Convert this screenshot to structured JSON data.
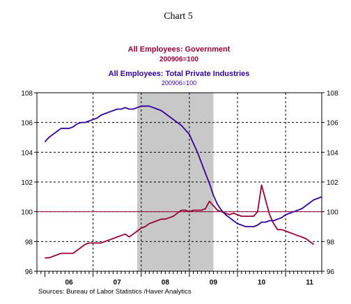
{
  "chart_data": {
    "type": "line",
    "title": "Chart 5",
    "series_titles": [
      {
        "name": "All Employees: Government",
        "sub": "200906=100",
        "color": "#990033"
      },
      {
        "name": "All Employees: Total Private Industries",
        "sub": "200906=100",
        "color": "#330099"
      }
    ],
    "source": "Sources:  Bureau of Labor Statistics /Haver Analytics",
    "x_range": [
      2005.833,
      2011.75
    ],
    "ylim": [
      96,
      108
    ],
    "y_ticks": [
      96,
      98,
      100,
      102,
      104,
      106,
      108
    ],
    "x_year_labels": [
      {
        "label": "06",
        "x": 2006.5
      },
      {
        "label": "07",
        "x": 2007.5
      },
      {
        "label": "08",
        "x": 2008.5
      },
      {
        "label": "09",
        "x": 2009.5
      },
      {
        "label": "10",
        "x": 2010.5
      },
      {
        "label": "11",
        "x": 2011.5
      }
    ],
    "year_gridlines": [
      2007,
      2008,
      2009,
      2010,
      2011
    ],
    "reference_line": {
      "y": 100,
      "color": "#990033"
    },
    "recession_shade": {
      "start": 2007.917,
      "end": 2009.5
    },
    "grid": true,
    "series": [
      {
        "name": "All Employees: Government",
        "color": "#990033",
        "points": [
          [
            2006.0,
            96.9
          ],
          [
            2006.083,
            96.9
          ],
          [
            2006.167,
            97.0
          ],
          [
            2006.25,
            97.1
          ],
          [
            2006.333,
            97.2
          ],
          [
            2006.417,
            97.2
          ],
          [
            2006.5,
            97.2
          ],
          [
            2006.583,
            97.2
          ],
          [
            2006.667,
            97.4
          ],
          [
            2006.75,
            97.6
          ],
          [
            2006.833,
            97.8
          ],
          [
            2006.917,
            97.9
          ],
          [
            2007.0,
            97.9
          ],
          [
            2007.083,
            97.9
          ],
          [
            2007.167,
            97.9
          ],
          [
            2007.25,
            98.0
          ],
          [
            2007.333,
            98.1
          ],
          [
            2007.417,
            98.2
          ],
          [
            2007.5,
            98.3
          ],
          [
            2007.583,
            98.4
          ],
          [
            2007.667,
            98.5
          ],
          [
            2007.75,
            98.3
          ],
          [
            2007.833,
            98.5
          ],
          [
            2007.917,
            98.7
          ],
          [
            2008.0,
            98.9
          ],
          [
            2008.083,
            99.0
          ],
          [
            2008.167,
            99.2
          ],
          [
            2008.25,
            99.3
          ],
          [
            2008.333,
            99.4
          ],
          [
            2008.417,
            99.5
          ],
          [
            2008.5,
            99.5
          ],
          [
            2008.583,
            99.6
          ],
          [
            2008.667,
            99.7
          ],
          [
            2008.75,
            99.9
          ],
          [
            2008.833,
            100.1
          ],
          [
            2008.917,
            100.1
          ],
          [
            2009.0,
            100.0
          ],
          [
            2009.083,
            100.1
          ],
          [
            2009.167,
            100.1
          ],
          [
            2009.25,
            100.1
          ],
          [
            2009.333,
            100.2
          ],
          [
            2009.417,
            100.7
          ],
          [
            2009.5,
            100.4
          ],
          [
            2009.583,
            100.1
          ],
          [
            2009.667,
            100.0
          ],
          [
            2009.75,
            99.9
          ],
          [
            2009.833,
            99.8
          ],
          [
            2009.917,
            99.9
          ],
          [
            2010.0,
            99.8
          ],
          [
            2010.083,
            99.7
          ],
          [
            2010.167,
            99.7
          ],
          [
            2010.25,
            99.7
          ],
          [
            2010.333,
            99.7
          ],
          [
            2010.417,
            100.0
          ],
          [
            2010.5,
            101.8
          ],
          [
            2010.583,
            100.8
          ],
          [
            2010.667,
            99.8
          ],
          [
            2010.75,
            99.2
          ],
          [
            2010.833,
            98.8
          ],
          [
            2010.917,
            98.8
          ],
          [
            2011.0,
            98.7
          ],
          [
            2011.083,
            98.6
          ],
          [
            2011.167,
            98.5
          ],
          [
            2011.25,
            98.4
          ],
          [
            2011.333,
            98.3
          ],
          [
            2011.417,
            98.2
          ],
          [
            2011.5,
            98.0
          ],
          [
            2011.583,
            97.8
          ]
        ]
      },
      {
        "name": "All Employees: Total Private Industries",
        "color": "#330099",
        "points": [
          [
            2006.0,
            104.7
          ],
          [
            2006.083,
            105.0
          ],
          [
            2006.167,
            105.2
          ],
          [
            2006.25,
            105.4
          ],
          [
            2006.333,
            105.6
          ],
          [
            2006.417,
            105.6
          ],
          [
            2006.5,
            105.6
          ],
          [
            2006.583,
            105.7
          ],
          [
            2006.667,
            105.9
          ],
          [
            2006.75,
            106.0
          ],
          [
            2006.833,
            106.0
          ],
          [
            2006.917,
            106.1
          ],
          [
            2007.0,
            106.2
          ],
          [
            2007.083,
            106.3
          ],
          [
            2007.167,
            106.5
          ],
          [
            2007.25,
            106.6
          ],
          [
            2007.333,
            106.7
          ],
          [
            2007.417,
            106.8
          ],
          [
            2007.5,
            106.9
          ],
          [
            2007.583,
            106.9
          ],
          [
            2007.667,
            107.0
          ],
          [
            2007.75,
            106.9
          ],
          [
            2007.833,
            106.9
          ],
          [
            2007.917,
            107.0
          ],
          [
            2008.0,
            107.1
          ],
          [
            2008.083,
            107.1
          ],
          [
            2008.167,
            107.1
          ],
          [
            2008.25,
            107.0
          ],
          [
            2008.333,
            106.9
          ],
          [
            2008.417,
            106.8
          ],
          [
            2008.5,
            106.6
          ],
          [
            2008.583,
            106.4
          ],
          [
            2008.667,
            106.2
          ],
          [
            2008.75,
            106.0
          ],
          [
            2008.833,
            105.8
          ],
          [
            2008.917,
            105.5
          ],
          [
            2009.0,
            105.2
          ],
          [
            2009.083,
            104.6
          ],
          [
            2009.167,
            104.0
          ],
          [
            2009.25,
            103.3
          ],
          [
            2009.333,
            102.6
          ],
          [
            2009.417,
            101.9
          ],
          [
            2009.5,
            101.1
          ],
          [
            2009.583,
            100.5
          ],
          [
            2009.667,
            100.1
          ],
          [
            2009.75,
            99.8
          ],
          [
            2009.833,
            99.6
          ],
          [
            2009.917,
            99.4
          ],
          [
            2010.0,
            99.2
          ],
          [
            2010.083,
            99.1
          ],
          [
            2010.167,
            99.0
          ],
          [
            2010.25,
            99.0
          ],
          [
            2010.333,
            99.0
          ],
          [
            2010.417,
            99.1
          ],
          [
            2010.5,
            99.3
          ],
          [
            2010.583,
            99.3
          ],
          [
            2010.667,
            99.4
          ],
          [
            2010.75,
            99.4
          ],
          [
            2010.833,
            99.5
          ],
          [
            2010.917,
            99.6
          ],
          [
            2011.0,
            99.8
          ],
          [
            2011.083,
            99.9
          ],
          [
            2011.167,
            100.0
          ],
          [
            2011.25,
            100.1
          ],
          [
            2011.333,
            100.2
          ],
          [
            2011.417,
            100.4
          ],
          [
            2011.5,
            100.6
          ],
          [
            2011.583,
            100.8
          ],
          [
            2011.667,
            100.9
          ],
          [
            2011.75,
            101.0
          ]
        ]
      }
    ]
  }
}
